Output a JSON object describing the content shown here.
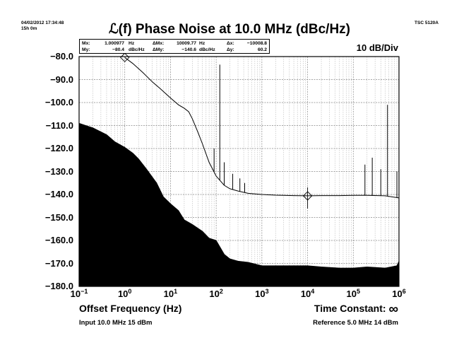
{
  "header": {
    "date": "04/02/2012 17:34:48",
    "elapsed": "15h 0m",
    "model": "TSC 5120A",
    "scale": "10 dB/Div"
  },
  "markers": {
    "mx_label": "Mx:",
    "mx_value": "1.000977",
    "mx_unit": "Hz",
    "my_label": "My:",
    "my_value": "−80.4",
    "my_unit": "dBc/Hz",
    "dmx_label": "ΔMx:",
    "dmx_value": "10009.77",
    "dmx_unit": "Hz",
    "dmy_label": "ΔMy:",
    "dmy_value": "−140.6",
    "dmy_unit": "dBc/Hz",
    "dx_label": "Δx:",
    "dx_value": "−10008.8",
    "dy_label": "Δy:",
    "dy_value": "60.2"
  },
  "footer": {
    "time_constant": "Time Constant:",
    "time_constant_symbol": "∞",
    "input": "Input 10.0 MHz 15 dBm",
    "reference": "Reference 5.0 MHz 14 dBm"
  },
  "chart_data": {
    "type": "line",
    "title": "ℒ(f) Phase Noise at 10.0 MHz (dBc/Hz)",
    "xlabel": "Offset Frequency (Hz)",
    "ylabel": "",
    "x_scale": "log",
    "xlim": [
      0.1,
      1000000
    ],
    "ylim": [
      -180,
      -80
    ],
    "grid": true,
    "y_ticks": [
      "−80.0",
      "−90.0",
      "−100.0",
      "−110.0",
      "−120.0",
      "−130.0",
      "−140.0",
      "−150.0",
      "−160.0",
      "−170.0",
      "−180.0"
    ],
    "x_ticks": [
      {
        "base": "10",
        "exp": "−1",
        "value": 0.1
      },
      {
        "base": "10",
        "exp": "0",
        "value": 1
      },
      {
        "base": "10",
        "exp": "1",
        "value": 10
      },
      {
        "base": "10",
        "exp": "2",
        "value": 100
      },
      {
        "base": "10",
        "exp": "3",
        "value": 1000
      },
      {
        "base": "10",
        "exp": "4",
        "value": 10000
      },
      {
        "base": "10",
        "exp": "5",
        "value": 100000
      },
      {
        "base": "10",
        "exp": "6",
        "value": 1000000
      }
    ],
    "series": [
      {
        "color": "#000000",
        "style": "line",
        "x": [
          1.0,
          1.5,
          2.5,
          4,
          6,
          10,
          15,
          20,
          25,
          30,
          40,
          50,
          70,
          100,
          150,
          200,
          300,
          500,
          1000,
          2000,
          5000,
          10000,
          20000,
          50000,
          100000,
          200000,
          500000,
          1000000
        ],
        "y": [
          -80.4,
          -83,
          -87,
          -91,
          -94,
          -98,
          -101,
          -102.5,
          -104,
          -107,
          -113,
          -118,
          -126,
          -132,
          -136,
          -137.5,
          -138.5,
          -139.5,
          -140,
          -140.3,
          -140.5,
          -140.6,
          -140.5,
          -140.5,
          -140.4,
          -140.4,
          -140.6,
          -141.5
        ]
      },
      {
        "color": "#000000",
        "style": "filled-area",
        "x": [
          0.1,
          0.2,
          0.4,
          0.6,
          1,
          1.5,
          2,
          3,
          5,
          7,
          10,
          15,
          20,
          30,
          50,
          70,
          100,
          150,
          200,
          300,
          500,
          1000,
          2000,
          5000,
          10000,
          20000,
          50000,
          100000,
          200000,
          500000,
          900000,
          1000000
        ],
        "y": [
          -109,
          -111,
          -114,
          -117,
          -119.5,
          -122,
          -124.5,
          -129,
          -135,
          -141,
          -144,
          -147,
          -151,
          -153,
          -156,
          -159,
          -160,
          -166,
          -168,
          -169,
          -169.5,
          -171,
          -171,
          -171,
          -171,
          -171.5,
          -172,
          -172,
          -171.5,
          -172,
          -171,
          -169
        ]
      }
    ],
    "spurs": [
      {
        "x": 120,
        "y": -83.5
      },
      {
        "x": 90,
        "y": -120
      },
      {
        "x": 150,
        "y": -126
      },
      {
        "x": 230,
        "y": -131
      },
      {
        "x": 330,
        "y": -133
      },
      {
        "x": 420,
        "y": -135
      },
      {
        "x": 180000,
        "y": -127
      },
      {
        "x": 260000,
        "y": -124
      },
      {
        "x": 400000,
        "y": -129
      },
      {
        "x": 560000,
        "y": -101
      },
      {
        "x": 900000,
        "y": -130
      }
    ],
    "marker_points": [
      {
        "x": 1.0,
        "y": -80.4,
        "shape": "diamond"
      },
      {
        "x": 10009.77,
        "y": -140.6,
        "shape": "diamond"
      }
    ]
  }
}
